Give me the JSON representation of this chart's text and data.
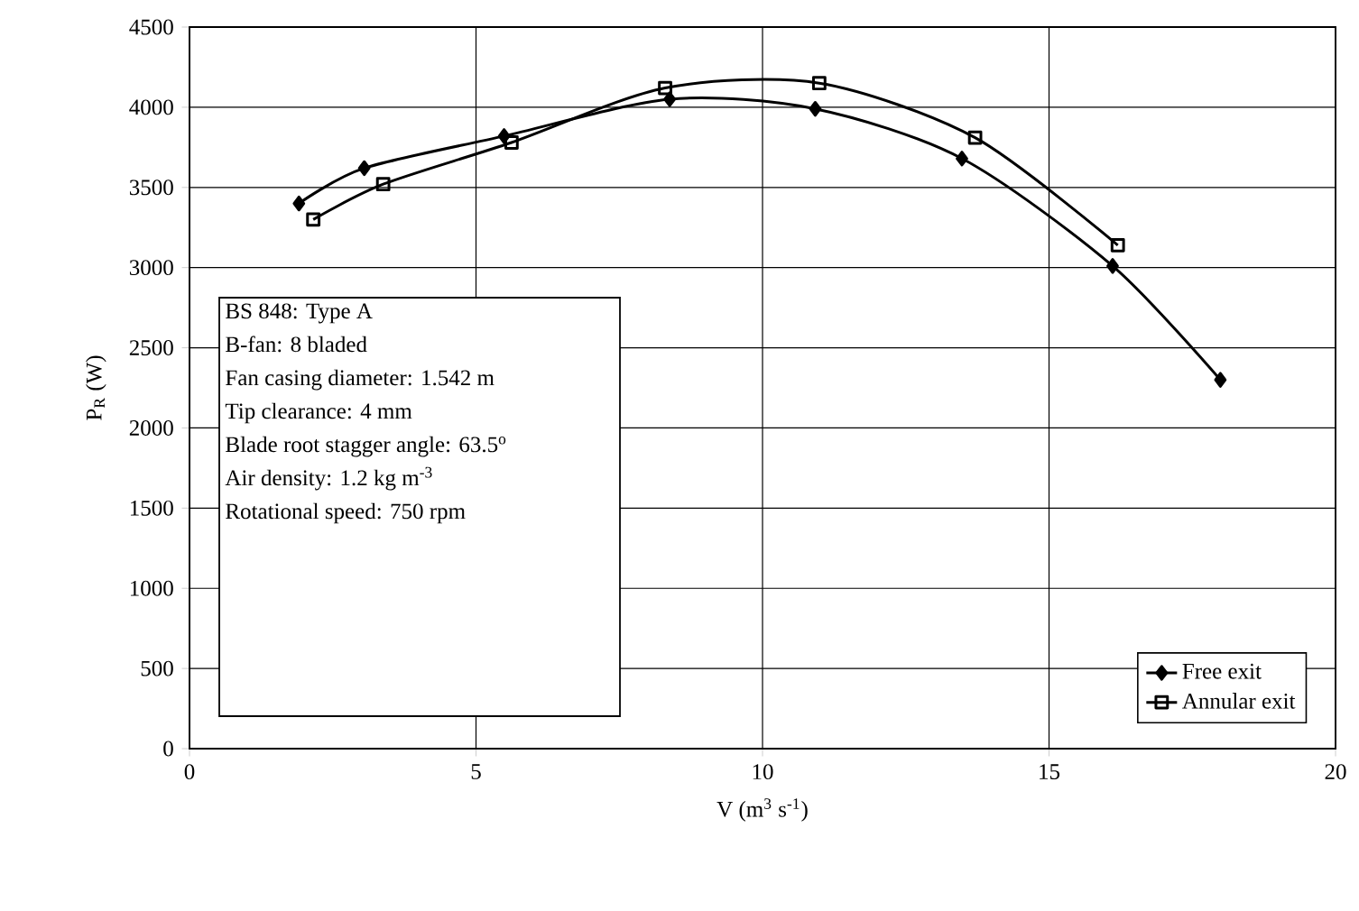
{
  "chart_data": {
    "type": "line",
    "xlabel": "V (m$^{3}$ s$^{-1}$)",
    "ylabel": "P$_{R}$ (W)",
    "xlim": [
      0,
      20
    ],
    "xticks": [
      0,
      5,
      10,
      15,
      20
    ],
    "ylim": [
      0,
      4500
    ],
    "yticks": [
      0,
      500,
      1000,
      1500,
      2000,
      2500,
      3000,
      3500,
      4000,
      4500
    ],
    "grid": true,
    "legend": "bottom right",
    "line_style": "solid",
    "series": [
      {
        "name": "Free exit",
        "color": "#000000",
        "marker": "diamond",
        "x": [
          1.91,
          3.05,
          5.49,
          8.38,
          10.92,
          13.48,
          16.11,
          17.99
        ],
        "values": [
          3400,
          3620,
          3820,
          4050,
          3990,
          3680,
          3010,
          2300
        ]
      },
      {
        "name": "Annular exit",
        "color": "#000000",
        "marker": "square",
        "x": [
          2.16,
          3.38,
          5.62,
          8.3,
          10.99,
          13.71,
          16.2
        ],
        "values": [
          3300,
          3520,
          3780,
          4120,
          4150,
          3810,
          3140
        ]
      }
    ],
    "annotations": [
      "BS 848: Type A",
      "B-fan: 8 bladed",
      "Fan casing diameter: 1.542 m",
      "Tip clearance: 4 mm",
      "Blade root stagger angle: 63.5$^{o}$",
      "Air density: 1.2 kg m$^{-3}$",
      "Rotational speed: 750 rpm"
    ]
  }
}
